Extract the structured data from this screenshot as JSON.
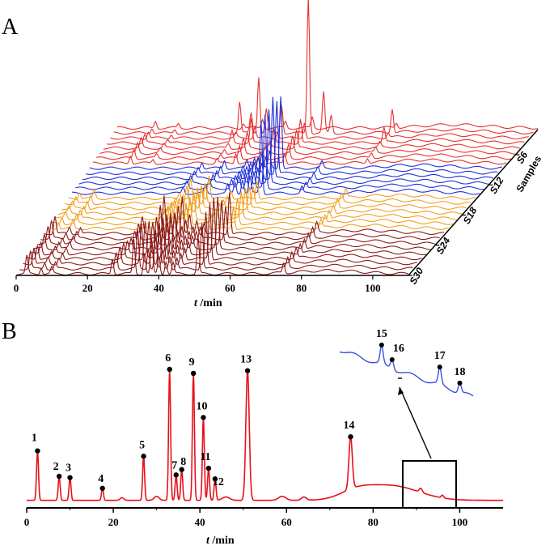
{
  "panels": {
    "a": "A",
    "b": "B"
  },
  "chart_data": [
    {
      "type": "line",
      "panel": "A",
      "xlabel_italic": "t",
      "xlabel_unit": " /min",
      "xlim": [
        0,
        110
      ],
      "xticks": [
        0,
        20,
        40,
        60,
        80,
        100
      ],
      "depth_label": "Samples",
      "depth_ticks": [
        "S6",
        "S12",
        "S18",
        "S24",
        "S30"
      ],
      "n_samples": 30,
      "sample_groups": [
        {
          "samples": [
            1,
            8
          ],
          "color": "#e83030"
        },
        {
          "samples": [
            9,
            14
          ],
          "color": "#1f2fd8"
        },
        {
          "samples": [
            15,
            21
          ],
          "color": "#f0a020"
        },
        {
          "samples": [
            22,
            30
          ],
          "color": "#8b1a1a"
        }
      ]
    },
    {
      "type": "line",
      "panel": "B",
      "xlabel_italic": "t",
      "xlabel_unit": " /min",
      "xlim": [
        0,
        110
      ],
      "xticks": [
        0,
        20,
        40,
        60,
        80,
        100
      ],
      "color": "#e8101a",
      "peaks": [
        {
          "label": "1",
          "x": 2.5,
          "y": 0.37
        },
        {
          "label": "2",
          "x": 7.5,
          "y": 0.18
        },
        {
          "label": "3",
          "x": 10.0,
          "y": 0.17
        },
        {
          "label": "4",
          "x": 17.5,
          "y": 0.09
        },
        {
          "label": "5",
          "x": 27.0,
          "y": 0.33
        },
        {
          "label": "6",
          "x": 33.0,
          "y": 0.98
        },
        {
          "label": "7",
          "x": 34.5,
          "y": 0.19
        },
        {
          "label": "8",
          "x": 35.8,
          "y": 0.23
        },
        {
          "label": "9",
          "x": 38.5,
          "y": 0.95
        },
        {
          "label": "10",
          "x": 40.8,
          "y": 0.62
        },
        {
          "label": "11",
          "x": 42.0,
          "y": 0.24
        },
        {
          "label": "12",
          "x": 43.5,
          "y": 0.16
        },
        {
          "label": "13",
          "x": 51.0,
          "y": 0.97
        },
        {
          "label": "14",
          "x": 74.8,
          "y": 0.39
        }
      ],
      "inset": {
        "color": "#3a4fe0",
        "range": [
          86,
          100
        ],
        "peaks": [
          {
            "label": "15"
          },
          {
            "label": "16"
          },
          {
            "label": "17"
          },
          {
            "label": "18"
          }
        ]
      }
    }
  ]
}
